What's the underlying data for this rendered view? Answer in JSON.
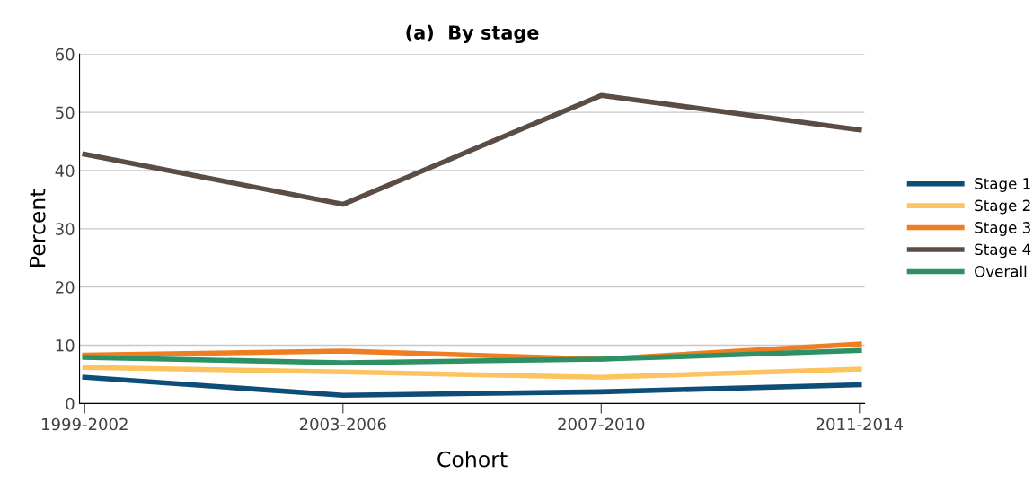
{
  "chart_data": {
    "type": "line",
    "title": "(a)  By stage",
    "xlabel": "Cohort",
    "ylabel": "Percent",
    "categories": [
      "1999-2002",
      "2003-2006",
      "2007-2010",
      "2011-2014"
    ],
    "series": [
      {
        "name": "Stage 1",
        "color": "#0e4d78",
        "values": [
          4.5,
          1.4,
          2.0,
          3.2
        ]
      },
      {
        "name": "Stage 2",
        "color": "#fdc35f",
        "values": [
          6.2,
          5.4,
          4.5,
          5.9
        ]
      },
      {
        "name": "Stage 3",
        "color": "#ef7d22",
        "values": [
          8.3,
          9.0,
          7.6,
          10.2
        ]
      },
      {
        "name": "Stage 4",
        "color": "#5c4d44",
        "values": [
          42.8,
          34.2,
          52.9,
          47.0
        ]
      },
      {
        "name": "Overall",
        "color": "#2e9166",
        "values": [
          7.9,
          7.0,
          7.6,
          9.1
        ]
      }
    ],
    "ylim": [
      0,
      60
    ],
    "yticks": [
      0,
      10,
      20,
      30,
      40,
      50,
      60
    ],
    "grid": "y",
    "legend": "right",
    "marker": "none",
    "line_style": "solid"
  }
}
